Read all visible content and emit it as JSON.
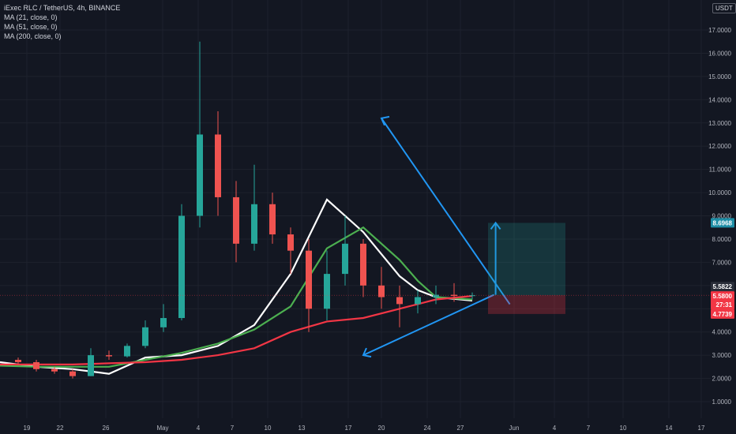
{
  "header": {
    "symbol_line": "iExec RLC / TetherUS, 4h, BINANCE",
    "ma_lines": [
      "MA (21, close, 0)",
      "MA (51, close, 0)",
      "MA (200, close, 0)"
    ],
    "currency": "USDT"
  },
  "price_axis": {
    "ticks": [
      "1.0000",
      "2.0000",
      "3.0000",
      "4.0000",
      "5.0000",
      "6.0000",
      "7.0000",
      "8.0000",
      "9.0000",
      "10.0000",
      "11.0000",
      "12.0000",
      "13.0000",
      "14.0000",
      "15.0000",
      "16.0000",
      "17.0000"
    ],
    "labels": {
      "target": {
        "text": "8.6968",
        "color": "#1e8ea6"
      },
      "ma_close": {
        "text": "5.5822",
        "color": "#d1d4dc"
      },
      "last_price": {
        "text": "5.5800",
        "color": "#f23645"
      },
      "countdown": {
        "text": "27:31",
        "color": "#f23645"
      },
      "stop": {
        "text": "4.7739",
        "color": "#f23645"
      }
    }
  },
  "time_axis": {
    "ticks": [
      "19",
      "22",
      "26",
      "May",
      "4",
      "7",
      "10",
      "13",
      "17",
      "20",
      "24",
      "27",
      "Jun",
      "4",
      "7",
      "10",
      "14",
      "17"
    ]
  },
  "chart_data": {
    "type": "candlestick",
    "symbol": "iExec RLC / TetherUS",
    "interval": "4h",
    "exchange": "BINANCE",
    "x_ticks": [
      "19",
      "22",
      "26",
      "May",
      "4",
      "7",
      "10",
      "13",
      "17",
      "20",
      "24",
      "27",
      "Jun",
      "4",
      "7",
      "10",
      "14",
      "17"
    ],
    "ylim": [
      0.8,
      17.5
    ],
    "grid": true,
    "series": [
      {
        "name": "MA (21, close, 0)",
        "color": "#ffffff",
        "x": [
          0,
          1,
          2,
          3,
          4,
          5,
          6,
          7,
          8,
          9,
          10,
          11,
          11.5,
          12,
          13
        ],
        "y": [
          2.7,
          2.5,
          2.4,
          2.2,
          2.9,
          3.0,
          3.4,
          4.3,
          6.5,
          9.7,
          8.3,
          6.4,
          5.8,
          5.5,
          5.35
        ]
      },
      {
        "name": "MA (51, close, 0)",
        "color": "#4caf50",
        "x": [
          0,
          1,
          2,
          3,
          4,
          5,
          6,
          7,
          8,
          9,
          10,
          11,
          11.5,
          12,
          13
        ],
        "y": [
          2.55,
          2.5,
          2.5,
          2.5,
          2.8,
          3.1,
          3.5,
          4.1,
          5.1,
          7.6,
          8.5,
          7.1,
          6.2,
          5.5,
          5.4
        ]
      },
      {
        "name": "MA (200, close, 0)",
        "color": "#f23645",
        "x": [
          0,
          1,
          2,
          3,
          4,
          5,
          6,
          7,
          8,
          9,
          10,
          11,
          11.5,
          12,
          13
        ],
        "y": [
          2.6,
          2.6,
          2.6,
          2.65,
          2.7,
          2.8,
          3.0,
          3.3,
          4.0,
          4.45,
          4.6,
          5.0,
          5.2,
          5.4,
          5.55
        ]
      }
    ],
    "candles": {
      "x": [
        0.5,
        1,
        1.5,
        2,
        2.5,
        3,
        3.5,
        4,
        4.5,
        5,
        5.5,
        6,
        6.5,
        7,
        7.5,
        8,
        8.5,
        9,
        9.5,
        10,
        10.5,
        11,
        11.5,
        12,
        12.5,
        13
      ],
      "ohlc": [
        [
          2.8,
          2.9,
          2.6,
          2.7
        ],
        [
          2.7,
          2.8,
          2.3,
          2.4
        ],
        [
          2.4,
          2.5,
          2.2,
          2.3
        ],
        [
          2.3,
          2.4,
          2.0,
          2.1
        ],
        [
          2.1,
          3.3,
          2.1,
          3.0
        ],
        [
          3.0,
          3.2,
          2.8,
          2.95
        ],
        [
          2.95,
          3.5,
          2.9,
          3.4
        ],
        [
          3.4,
          4.5,
          3.3,
          4.2
        ],
        [
          4.2,
          5.2,
          4.0,
          4.6
        ],
        [
          4.6,
          9.5,
          4.5,
          9.0
        ],
        [
          9.0,
          16.5,
          8.5,
          12.5
        ],
        [
          12.5,
          13.5,
          9.0,
          9.8
        ],
        [
          9.8,
          10.5,
          7.0,
          7.8
        ],
        [
          7.8,
          11.2,
          7.5,
          9.5
        ],
        [
          9.5,
          10.0,
          7.8,
          8.2
        ],
        [
          8.2,
          8.5,
          6.5,
          7.5
        ],
        [
          7.5,
          8.0,
          4.0,
          5.0
        ],
        [
          5.0,
          7.5,
          4.5,
          6.5
        ],
        [
          6.5,
          9.0,
          6.0,
          7.8
        ],
        [
          7.8,
          8.0,
          5.5,
          6.0
        ],
        [
          6.0,
          6.8,
          5.0,
          5.5
        ],
        [
          5.5,
          6.0,
          4.2,
          5.2
        ],
        [
          5.2,
          5.8,
          4.8,
          5.5
        ],
        [
          5.5,
          6.0,
          5.2,
          5.6
        ],
        [
          5.6,
          6.1,
          5.3,
          5.55
        ],
        [
          5.55,
          5.7,
          5.4,
          5.58
        ]
      ]
    },
    "annotations": {
      "triangle_upper_line": {
        "from": [
          10.5,
          13.2
        ],
        "to": [
          13.6,
          5.6
        ]
      },
      "triangle_lower_line": {
        "from": [
          13.6,
          5.6
        ],
        "to": [
          10.0,
          3.0
        ]
      },
      "breakout_arrow_target": 8.6968,
      "position_entry": 5.58,
      "position_stop": 4.7739,
      "position_target": 8.6968
    }
  }
}
